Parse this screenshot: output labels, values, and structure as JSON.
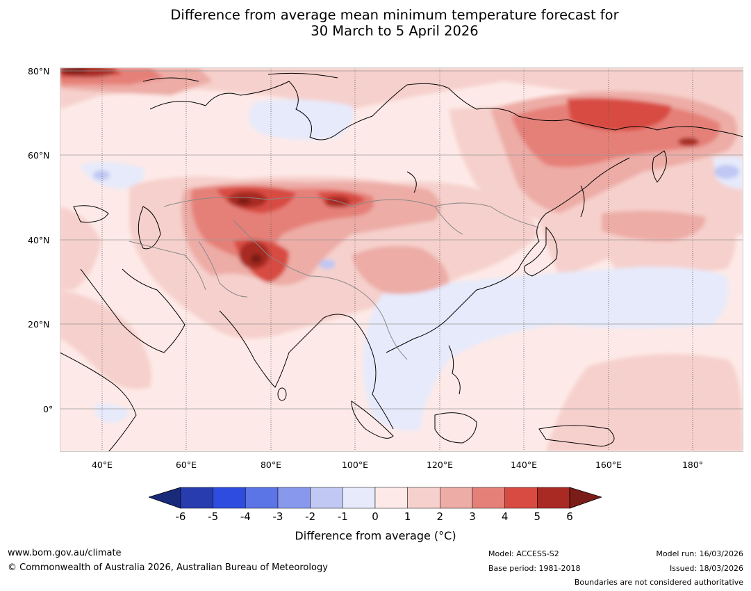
{
  "title": {
    "line1": "Difference from average mean minimum temperature forecast for",
    "line2": "30 March to 5 April 2026"
  },
  "axes": {
    "lat_labels": [
      "80°N",
      "60°N",
      "40°N",
      "20°N",
      "0°"
    ],
    "lon_labels": [
      "40°E",
      "60°E",
      "80°E",
      "100°E",
      "120°E",
      "140°E",
      "160°E",
      "180°"
    ]
  },
  "colorbar": {
    "ticks": [
      "-6",
      "-5",
      "-4",
      "-3",
      "-2",
      "-1",
      "0",
      "1",
      "2",
      "3",
      "4",
      "5",
      "6"
    ],
    "colors": [
      "#1a2a7a",
      "#283cb0",
      "#2e4de0",
      "#5b74e6",
      "#8898ec",
      "#c0c8f3",
      "#e6eafb",
      "#fdeae8",
      "#f6d0cc",
      "#edaca6",
      "#e58078",
      "#d84b42",
      "#a82a23",
      "#7a1c18"
    ],
    "label": "Difference from average (°C)"
  },
  "footer": {
    "website": "www.bom.gov.au/climate",
    "copyright": "© Commonwealth of Australia 2026, Australian Bureau of Meteorology",
    "model": "Model: ACCESS-S2",
    "base_period": "Base period: 1981-2018",
    "model_run": "Model run: 16/03/2026",
    "issued": "Issued: 18/03/2026",
    "disclaimer": "Boundaries are not considered authoritative"
  }
}
